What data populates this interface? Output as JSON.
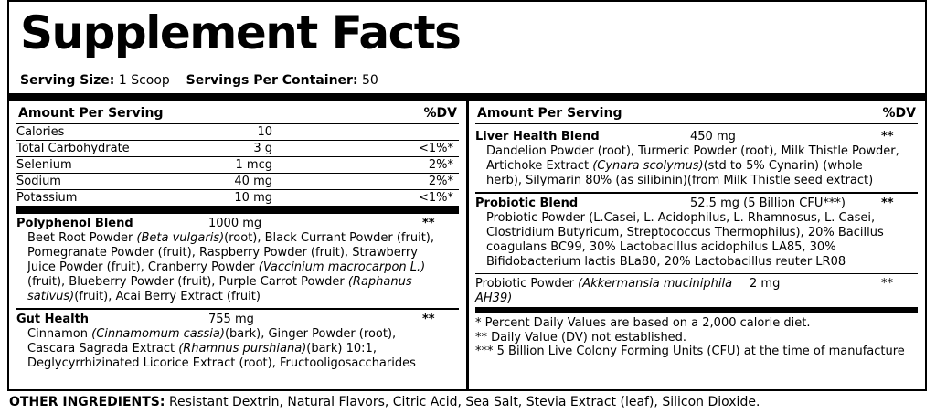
{
  "title": "Supplement Facts",
  "serving": {
    "serving_size_label": "Serving Size:",
    "serving_size": "1 Scoop",
    "servings_label": "Servings Per Container:",
    "servings": "50"
  },
  "left": {
    "header": {
      "amount": "Amount Per Serving",
      "dv": "%DV"
    },
    "nutrients": [
      {
        "name": "Calories",
        "amount": "10"
      },
      {
        "name": "Total Carbohydrate",
        "amount": "3 g",
        "dv": "<1%*"
      },
      {
        "name": "Selenium",
        "amount": "1 mcg",
        "dv": "2%*"
      },
      {
        "name": "Sodium",
        "amount": "40 mg",
        "dv": "2%*"
      },
      {
        "name": "Potassium",
        "amount": "10 mg",
        "dv": "<1%*"
      }
    ],
    "blends": [
      {
        "name": "Polyphenol Blend",
        "amount": "1000 mg",
        "dv": "**",
        "parts": [
          "Beet Root Powder ",
          "(Beta vulgaris)",
          "(root), Black Currant Powder (fruit), Pomegranate Powder (fruit), Raspberry Powder (fruit), Strawberry Juice Powder (fruit), Cranberry Powder ",
          "(Vaccinium macrocarpon L.)",
          "(fruit), Blueberry Powder (fruit), Purple Carrot Powder ",
          "(Raphanus sativus)",
          "(fruit), Acai Berry Extract (fruit)"
        ]
      },
      {
        "name": "Gut Health",
        "amount": "755 mg",
        "dv": "**",
        "parts": [
          "Cinnamon ",
          "(Cinnamomum cassia)",
          "(bark), Ginger Powder (root), Cascara Sagrada Extract ",
          "(Rhamnus purshiana)",
          "(bark) 10:1, Deglycyrrhizinated Licorice Extract (root), Fructooligosaccharides"
        ]
      }
    ]
  },
  "right": {
    "header": {
      "amount": "Amount Per Serving",
      "dv": "%DV"
    },
    "blends": [
      {
        "name": "Liver Health Blend",
        "amount": "450 mg",
        "dv": "**",
        "parts": [
          "Dandelion Powder (root), Turmeric Powder (root), Milk Thistle Powder, Artichoke Extract ",
          "(Cynara scolymus)",
          "(std to 5% Cynarin) (whole herb), Silymarin 80% (as silibinin)(from Milk Thistle seed extract)"
        ]
      },
      {
        "name": "Probiotic Blend",
        "amount": "52.5 mg (5 Billion CFU***)",
        "dv": "**",
        "parts": [
          "Probiotic Powder (L.Casei, L. Acidophilus, L. Rhamnosus, L. Casei, Clostridium Butyricum, Streptococcus Thermophilus), 20% Bacillus coagulans BC99, 30% Lactobacillus acidophilus LA85, 30% Bifidobacterium lactis BLa80, 20% Lactobacillus reuter LR08"
        ]
      }
    ],
    "single": {
      "name_parts": [
        "Probiotic Powder ",
        "(Akkermansia muciniphila AH39)"
      ],
      "amount": "2 mg",
      "dv": "**"
    },
    "footnotes": [
      "* Percent Daily Values are based on a 2,000 calorie diet.",
      "** Daily Value (DV) not established.",
      "*** 5 Billion Live Colony Forming Units (CFU) at the time of manufacture"
    ]
  },
  "other_ingredients": {
    "label": "OTHER INGREDIENTS:",
    "text": "Resistant Dextrin, Natural Flavors, Citric Acid, Sea Salt, Stevia Extract (leaf), Silicon Dioxide."
  }
}
